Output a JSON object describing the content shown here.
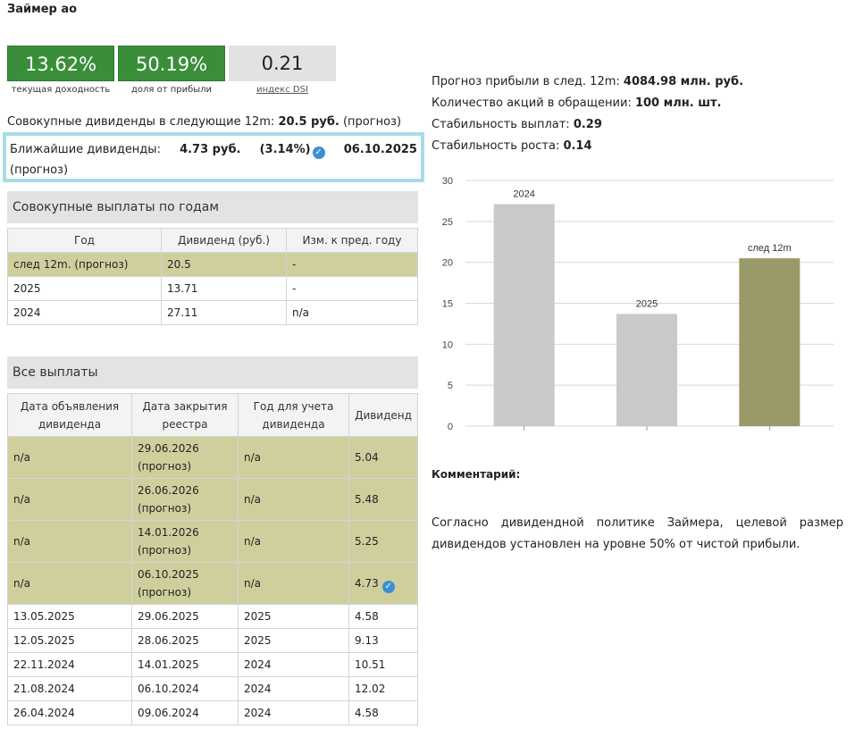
{
  "title": "Займер ао",
  "kpis": [
    {
      "value": "13.62%",
      "label": "текущая доходность"
    },
    {
      "value": "50.19%",
      "label": "доля от прибыли"
    },
    {
      "value": "0.21",
      "label": "индекс DSI"
    }
  ],
  "total": {
    "prefix": "Совокупные дивиденды в следующие 12m:",
    "amount": "20.5 руб.",
    "suffix": "(прогноз)"
  },
  "nearest": {
    "label": "Ближайшие дивиденды:",
    "amount": "4.73 руб.",
    "pct": "(3.14%)",
    "date": "06.10.2025",
    "note": "(прогноз)"
  },
  "yearly_section": "Совокупные выплаты по годам",
  "yearly_headers": [
    "Год",
    "Дивиденд (руб.)",
    "Изм. к пред. году"
  ],
  "yearly_rows": [
    [
      "след 12m. (прогноз)",
      "20.5",
      "-"
    ],
    [
      "2025",
      "13.71",
      "-"
    ],
    [
      "2024",
      "27.11",
      "n/a"
    ]
  ],
  "all_section": "Все выплаты",
  "all_headers": [
    "Дата объявления дивиденда",
    "Дата закрытия реестра",
    "Год для учета дивиденда",
    "Дивиденд"
  ],
  "all_rows": [
    [
      "n/a",
      "29.06.2026",
      "(прогноз)",
      "n/a",
      "5.04"
    ],
    [
      "n/a",
      "26.06.2026",
      "(прогноз)",
      "n/a",
      "5.48"
    ],
    [
      "n/a",
      "14.01.2026",
      "(прогноз)",
      "n/a",
      "5.25"
    ],
    [
      "n/a",
      "06.10.2025",
      "(прогноз)",
      "n/a",
      "4.73"
    ],
    [
      "13.05.2025",
      "29.06.2025",
      "",
      "2025",
      "4.58"
    ],
    [
      "12.05.2025",
      "28.06.2025",
      "",
      "2025",
      "9.13"
    ],
    [
      "22.11.2024",
      "14.01.2025",
      "",
      "2024",
      "10.51"
    ],
    [
      "21.08.2024",
      "06.10.2024",
      "",
      "2024",
      "12.02"
    ],
    [
      "26.04.2024",
      "09.06.2024",
      "",
      "2024",
      "4.58"
    ]
  ],
  "info": [
    {
      "label": "Прогноз прибыли в след. 12m:",
      "value": "4084.98 млн. руб."
    },
    {
      "label": "Количество акций в обращении:",
      "value": "100 млн. шт."
    },
    {
      "label": "Стабильность выплат:",
      "value": "0.29"
    },
    {
      "label": "Стабильность роста:",
      "value": "0.14"
    }
  ],
  "chart_data": {
    "type": "bar",
    "categories": [
      "2024",
      "2025",
      "след 12m"
    ],
    "values": [
      27.11,
      13.71,
      20.5
    ],
    "colors": [
      "#c9c9c9",
      "#c9c9c9",
      "#9a9a68"
    ],
    "ylim": [
      0,
      30
    ],
    "yticks": [
      "0",
      "5",
      "10",
      "15",
      "20",
      "25",
      "30"
    ],
    "grid": true
  },
  "comment_title": "Комментарий:",
  "comment": "Согласно дивидендной политике Займера, целевой размер дивидендов установлен на уровне 50% от чистой прибыли."
}
